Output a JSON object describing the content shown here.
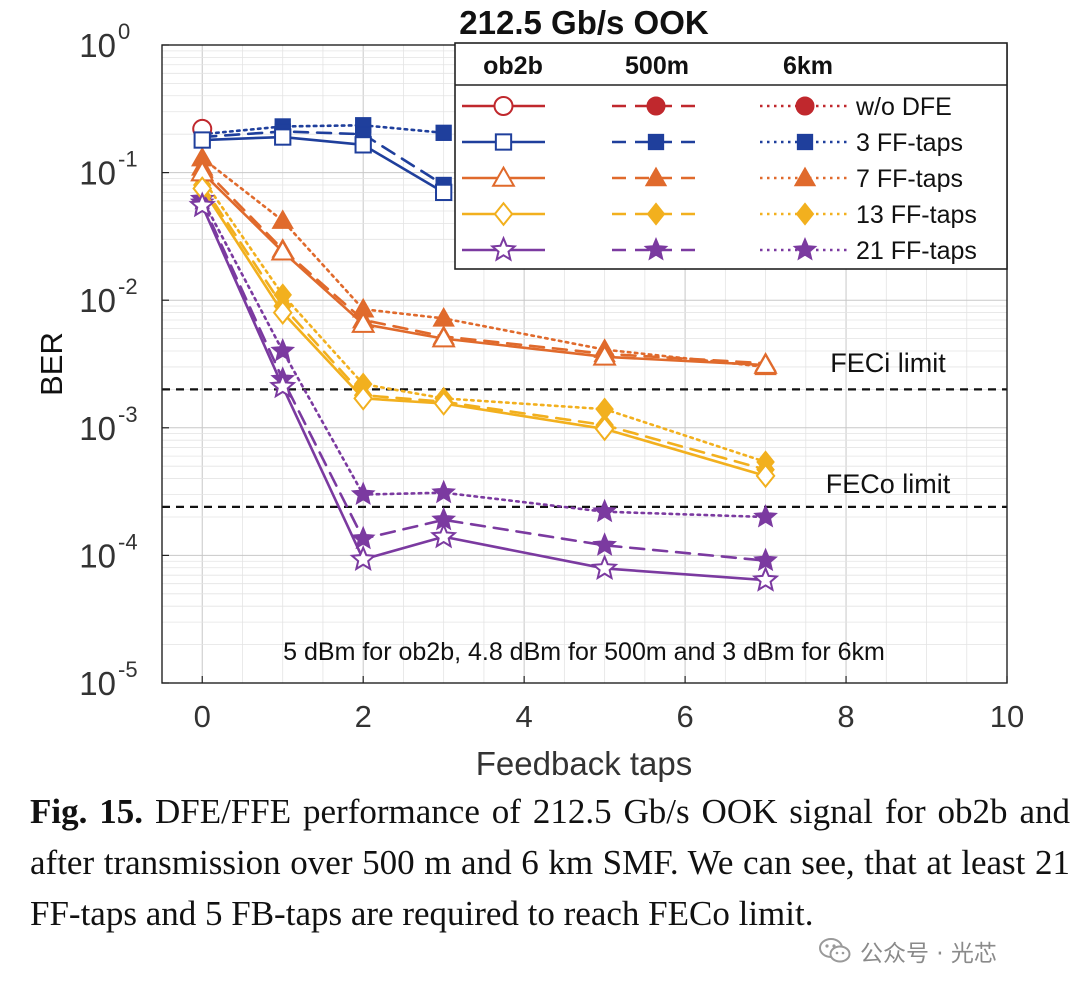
{
  "chart_data": {
    "type": "line",
    "title": "212.5 Gb/s OOK",
    "xlabel": "Feedback taps",
    "ylabel": "BER",
    "x_scale": "linear",
    "y_scale": "log",
    "xlim": [
      -0.5,
      10
    ],
    "ylim": [
      1e-05,
      1
    ],
    "x_ticks": [
      "0",
      "2",
      "4",
      "6",
      "8",
      "10"
    ],
    "y_ticks": [
      {
        "base": "10",
        "exp": "0"
      },
      {
        "base": "10",
        "exp": "-1"
      },
      {
        "base": "10",
        "exp": "-2"
      },
      {
        "base": "10",
        "exp": "-3"
      },
      {
        "base": "10",
        "exp": "-4"
      },
      {
        "base": "10",
        "exp": "-5"
      }
    ],
    "grid": true,
    "legend": {
      "placement": "top-right",
      "columns": [
        "ob2b",
        "500m",
        "6km"
      ],
      "rows": [
        "w/o DFE",
        "3 FF-taps",
        "7 FF-taps",
        "13 FF-taps",
        "21 FF-taps"
      ]
    },
    "colors": {
      "w/o DFE": "#c0282d",
      "3 FF-taps": "#1f3f9c",
      "7 FF-taps": "#e06a2c",
      "13 FF-taps": "#f2b01e",
      "21 FF-taps": "#7b3aa0"
    },
    "markers": {
      "w/o DFE": "circle",
      "3 FF-taps": "square",
      "7 FF-taps": "triangle",
      "13 FF-taps": "diamond",
      "21 FF-taps": "star"
    },
    "line_styles": {
      "ob2b": "solid",
      "500m": "dashed",
      "6km": "dotted"
    },
    "series": [
      {
        "group": "w/o DFE",
        "link": "ob2b",
        "x": [
          0
        ],
        "y": [
          0.22
        ]
      },
      {
        "group": "w/o DFE",
        "link": "500m",
        "x": [
          0
        ],
        "y": [
          0.22
        ]
      },
      {
        "group": "w/o DFE",
        "link": "6km",
        "x": [
          0
        ],
        "y": [
          0.22
        ]
      },
      {
        "group": "3 FF-taps",
        "link": "ob2b",
        "x": [
          0,
          1,
          2,
          3
        ],
        "y": [
          0.18,
          0.19,
          0.165,
          0.07
        ]
      },
      {
        "group": "3 FF-taps",
        "link": "500m",
        "x": [
          0,
          1,
          2,
          3
        ],
        "y": [
          0.19,
          0.21,
          0.2,
          0.08
        ]
      },
      {
        "group": "3 FF-taps",
        "link": "6km",
        "x": [
          0,
          1,
          2,
          3
        ],
        "y": [
          0.2,
          0.23,
          0.235,
          0.205
        ]
      },
      {
        "group": "7 FF-taps",
        "link": "ob2b",
        "x": [
          0,
          1,
          2,
          3,
          5,
          7
        ],
        "y": [
          0.1,
          0.024,
          0.0065,
          0.005,
          0.0036,
          0.0031
        ]
      },
      {
        "group": "7 FF-taps",
        "link": "500m",
        "x": [
          0,
          1,
          2,
          3,
          5,
          7
        ],
        "y": [
          0.11,
          0.025,
          0.007,
          0.0052,
          0.0038,
          0.0032
        ]
      },
      {
        "group": "7 FF-taps",
        "link": "6km",
        "x": [
          0,
          1,
          2,
          3,
          5,
          7
        ],
        "y": [
          0.13,
          0.042,
          0.0085,
          0.0072,
          0.0041,
          0.003
        ]
      },
      {
        "group": "13 FF-taps",
        "link": "ob2b",
        "x": [
          0,
          1,
          2,
          3,
          5,
          7
        ],
        "y": [
          0.075,
          0.008,
          0.0017,
          0.00155,
          0.00098,
          0.00042
        ]
      },
      {
        "group": "13 FF-taps",
        "link": "500m",
        "x": [
          0,
          1,
          2,
          3,
          5,
          7
        ],
        "y": [
          0.08,
          0.009,
          0.0018,
          0.0016,
          0.00105,
          0.00047
        ]
      },
      {
        "group": "13 FF-taps",
        "link": "6km",
        "x": [
          0,
          1,
          2,
          3,
          5,
          7
        ],
        "y": [
          0.09,
          0.011,
          0.0022,
          0.0017,
          0.0014,
          0.00054
        ]
      },
      {
        "group": "21 FF-taps",
        "link": "ob2b",
        "x": [
          0,
          1,
          2,
          3,
          5,
          7
        ],
        "y": [
          0.055,
          0.0021,
          9.3e-05,
          0.00014,
          7.9e-05,
          6.4e-05
        ]
      },
      {
        "group": "21 FF-taps",
        "link": "500m",
        "x": [
          0,
          1,
          2,
          3,
          5,
          7
        ],
        "y": [
          0.058,
          0.0024,
          0.000135,
          0.00019,
          0.00012,
          9.1e-05
        ]
      },
      {
        "group": "21 FF-taps",
        "link": "6km",
        "x": [
          0,
          1,
          2,
          3,
          5,
          7
        ],
        "y": [
          0.062,
          0.004,
          0.0003,
          0.00031,
          0.00022,
          0.0002
        ]
      }
    ],
    "reference_lines": [
      {
        "label": "FECi limit",
        "y": 0.002
      },
      {
        "label": "FECo limit",
        "y": 0.00024
      }
    ],
    "annotation": "5 dBm for ob2b, 4.8 dBm for 500m and 3 dBm for 6km"
  },
  "caption": {
    "label": "Fig. 15.",
    "text": "DFE/FFE performance of 212.5 Gb/s OOK signal for ob2b and after transmission over 500 m and 6 km SMF. We can see, that at least 21 FF-taps and 5 FB-taps are required to reach FECo limit."
  },
  "watermark": {
    "text": "公众号 · 光芯",
    "icon": "wechat-icon"
  }
}
